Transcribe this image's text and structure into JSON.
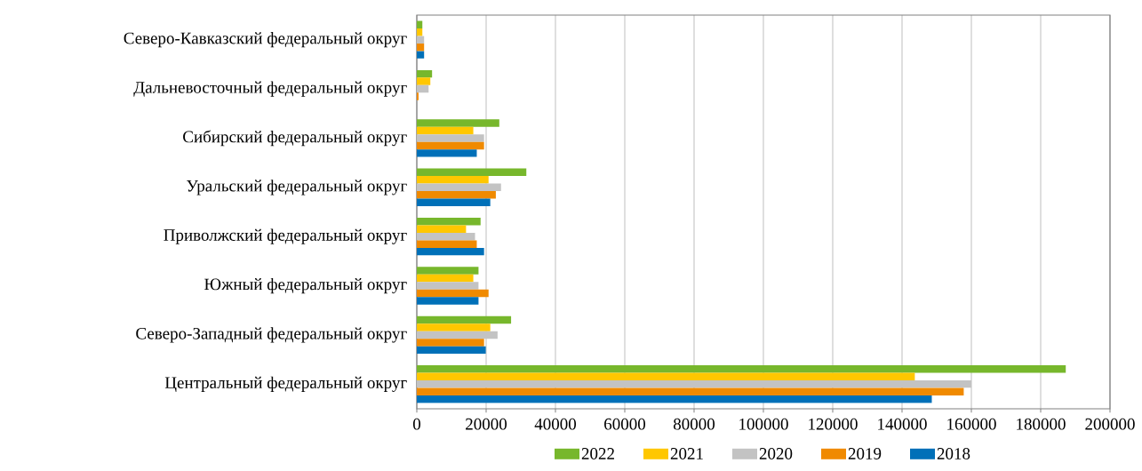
{
  "chart_data": {
    "type": "bar",
    "orientation": "horizontal",
    "categories": [
      "Северо-Кавказский федеральный округ",
      "Дальневосточный федеральный округ",
      "Сибирский федеральный округ",
      "Уральский федеральный округ",
      "Приволжский федеральный округ",
      "Южный федеральный округ",
      "Северо-Западный федеральный округ",
      "Центральный федеральный округ"
    ],
    "series": [
      {
        "name": "2022",
        "color": "#77b72c",
        "values": [
          1600,
          4400,
          23800,
          31600,
          18400,
          17800,
          27200,
          187300
        ]
      },
      {
        "name": "2021",
        "color": "#ffc700",
        "values": [
          1600,
          3900,
          16300,
          20700,
          14200,
          16300,
          21200,
          143700
        ]
      },
      {
        "name": "2020",
        "color": "#c3c3c3",
        "values": [
          2100,
          3400,
          19400,
          24300,
          16800,
          17800,
          23300,
          160000
        ]
      },
      {
        "name": "2019",
        "color": "#f08a00",
        "values": [
          2100,
          500,
          19400,
          22800,
          17300,
          20700,
          19400,
          157800
        ]
      },
      {
        "name": "2018",
        "color": "#0070b8",
        "values": [
          2100,
          0,
          17300,
          21200,
          19400,
          17800,
          19900,
          148600
        ]
      }
    ],
    "xlim": [
      0,
      200000
    ],
    "xticks": [
      0,
      20000,
      40000,
      60000,
      80000,
      100000,
      120000,
      140000,
      160000,
      180000,
      200000
    ],
    "grid": "x",
    "legend": "bottom"
  }
}
